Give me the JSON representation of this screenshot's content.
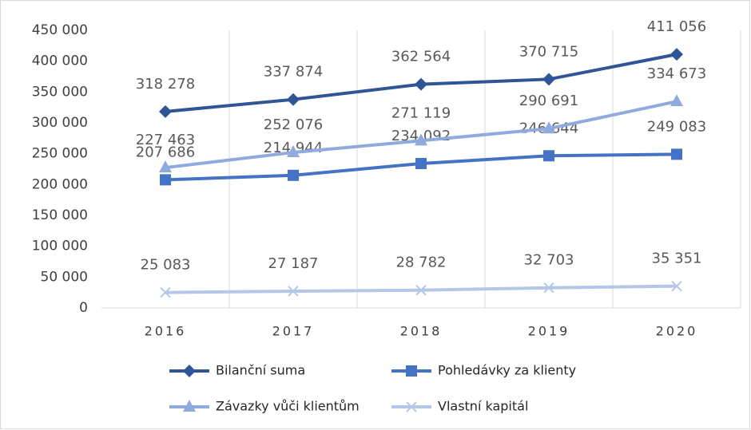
{
  "chart_data": {
    "type": "line",
    "categories": [
      "2016",
      "2017",
      "2018",
      "2019",
      "2020"
    ],
    "series": [
      {
        "name": "Bilanční suma",
        "color": "#2f5597",
        "marker": "diamond",
        "values": [
          318278,
          337874,
          362564,
          370715,
          411056
        ],
        "value_labels": [
          "318 278",
          "337 874",
          "362 564",
          "370 715",
          "411 056"
        ]
      },
      {
        "name": "Pohledávky za klienty",
        "color": "#4472c4",
        "marker": "square",
        "values": [
          207686,
          214944,
          234092,
          246644,
          249083
        ],
        "value_labels": [
          "207 686",
          "214 944",
          "234 092",
          "246 644",
          "249 083"
        ]
      },
      {
        "name": "Závazky vůči klientům",
        "color": "#8faadc",
        "marker": "triangle",
        "values": [
          227463,
          252076,
          271119,
          290691,
          334673
        ],
        "value_labels": [
          "227 463",
          "252 076",
          "271 119",
          "290 691",
          "334 673"
        ]
      },
      {
        "name": "Vlastní kapitál",
        "color": "#b4c7e7",
        "marker": "x",
        "values": [
          25083,
          27187,
          28782,
          32703,
          35351
        ],
        "value_labels": [
          "25 083",
          "27 187",
          "28 782",
          "32 703",
          "35 351"
        ]
      }
    ],
    "ylim": [
      0,
      450000
    ],
    "yticks": [
      0,
      {
        "value": 50000,
        "label": "50 000"
      },
      {
        "value": 100000,
        "label": "100 000"
      },
      {
        "value": 150000,
        "label": "150 000"
      },
      {
        "value": 200000,
        "label": "200 000"
      },
      {
        "value": 250000,
        "label": "250 000"
      },
      {
        "value": 300000,
        "label": "300 000"
      },
      {
        "value": 350000,
        "label": "350 000"
      },
      {
        "value": 400000,
        "label": "400 000"
      },
      {
        "value": {
          "value": 450000
        },
        "label": "450 000"
      }
    ],
    "legend": "bottom"
  }
}
